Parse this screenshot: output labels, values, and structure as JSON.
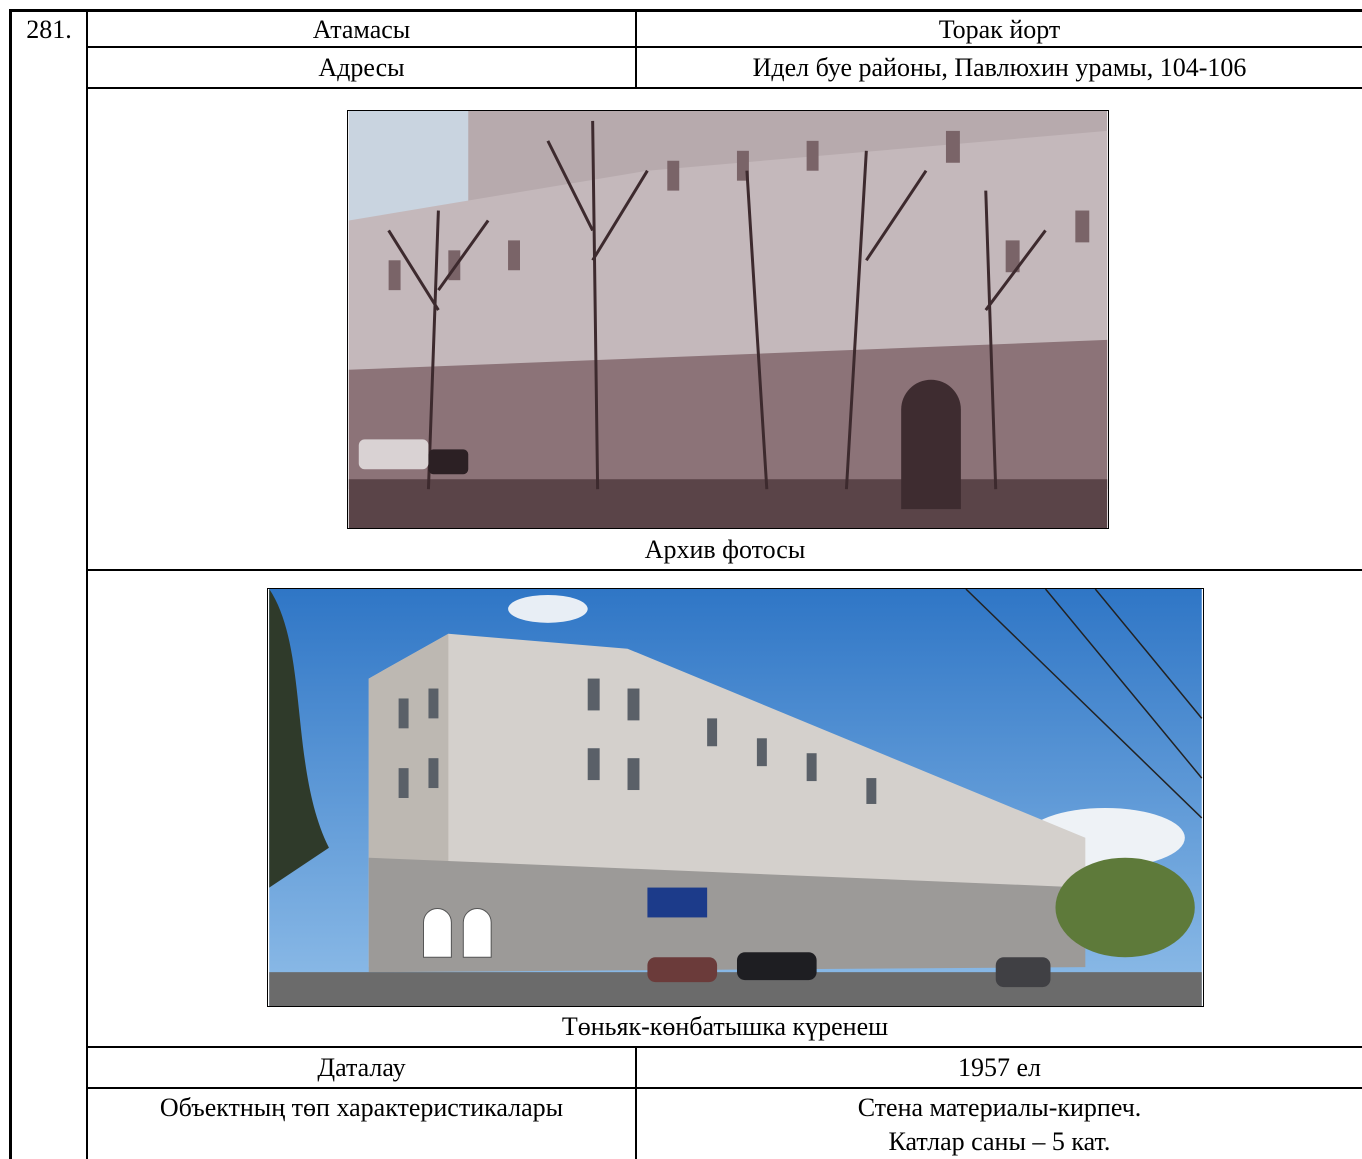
{
  "number": "281.",
  "fields": [
    {
      "label": "Атамасы",
      "value": "Торак йорт"
    },
    {
      "label": "Адресы",
      "value": "Идел буе районы, Павлюхин урамы, 104-106"
    }
  ],
  "photos": [
    {
      "caption": "Архив фотосы"
    },
    {
      "caption": "Төньяк-көнбатышка күренеш"
    }
  ],
  "dating": {
    "label": "Даталау",
    "value": "1957 ел"
  },
  "characteristics": {
    "label": "Объектның төп характеристикалары",
    "lines": [
      "Стена материалы-кирпеч.",
      "Катлар саны – 5 кат."
    ]
  }
}
